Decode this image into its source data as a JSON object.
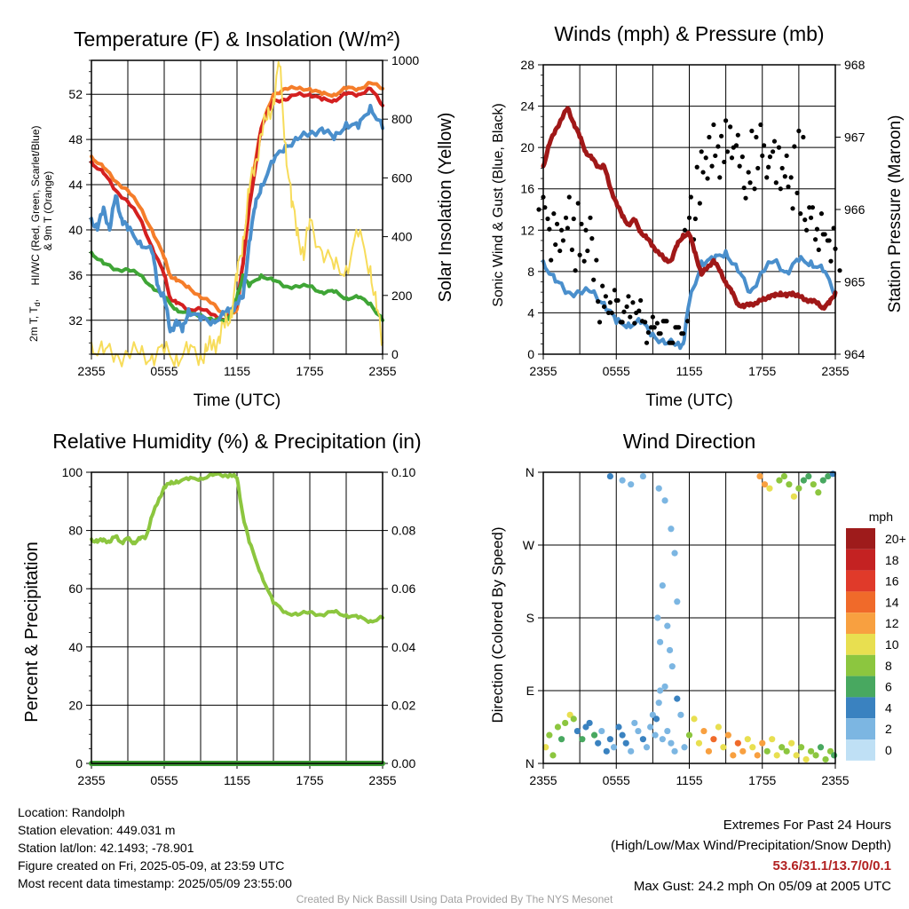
{
  "chart_data": [
    {
      "type": "line",
      "title": "Temperature (F) & Insolation (W/m²)",
      "xlabel": "Time (UTC)",
      "ylabel": "2m T, Td, HI/WC (Red, Green, Scarlet/Blue) & 9m T (Orange)",
      "y2label": "Solar Insolation (Yellow)",
      "xticks": [
        "2355",
        "0555",
        "1155",
        "1755",
        "2355"
      ],
      "xlim": [
        0,
        24
      ],
      "ylim": [
        29,
        55
      ],
      "yticks": [
        32,
        36,
        40,
        44,
        48,
        52
      ],
      "y2lim": [
        0,
        1000
      ],
      "y2ticks": [
        0,
        200,
        400,
        600,
        800,
        1000
      ],
      "colors": {
        "t2m": "#d42020",
        "t9m": "#f57d2a",
        "td": "#3fa536",
        "wc": "#4a8fcc",
        "solar": "#f7dc5a"
      },
      "series": [
        {
          "key": "t9m",
          "x": [
            0,
            1,
            2,
            3,
            4,
            5,
            6,
            6.5,
            7,
            8,
            9,
            10,
            11,
            11.5,
            12,
            12.5,
            13,
            14,
            15,
            16,
            17,
            18,
            19,
            20,
            21,
            22,
            23,
            24
          ],
          "values": [
            46.5,
            45.5,
            44.3,
            43.5,
            42,
            40,
            37.5,
            36,
            35.5,
            35,
            34,
            33.5,
            32.5,
            32.5,
            33,
            37,
            43,
            49,
            52,
            52.5,
            52.5,
            52.5,
            52,
            52,
            52.5,
            52.5,
            53,
            52.5
          ]
        },
        {
          "key": "t2m",
          "x": [
            0,
            1,
            2,
            3,
            4,
            5,
            6,
            6.5,
            7,
            8,
            9,
            10,
            11,
            11.5,
            12,
            12.5,
            13,
            14,
            15,
            16,
            17,
            18,
            19,
            20,
            21,
            22,
            23,
            24
          ],
          "values": [
            46,
            45,
            43.5,
            42.5,
            41,
            38.5,
            36,
            34,
            33.5,
            33,
            33,
            32.5,
            32,
            32.5,
            33.5,
            37,
            42,
            49,
            51.5,
            51.5,
            52,
            52,
            51.5,
            51.5,
            52,
            52,
            52.5,
            51
          ]
        },
        {
          "key": "td",
          "x": [
            0,
            1,
            2,
            3,
            4,
            5,
            6,
            7,
            8,
            9,
            10,
            11,
            11.5,
            12,
            12.5,
            13,
            14,
            15,
            16,
            17,
            18,
            19,
            20,
            21,
            22,
            23,
            24
          ],
          "values": [
            38,
            37,
            36.5,
            36.5,
            36,
            35,
            34,
            33,
            32.5,
            32.5,
            32,
            32,
            32.5,
            34,
            36,
            35,
            36,
            35.5,
            35,
            35,
            35,
            34.5,
            34.5,
            34,
            34,
            33.5,
            32
          ]
        },
        {
          "key": "wc",
          "x": [
            0,
            0.5,
            1,
            1.5,
            2,
            2.5,
            3,
            4,
            5,
            5.5,
            6,
            6.5,
            7,
            7.5,
            8,
            9,
            10,
            11,
            11.5,
            12,
            12.5,
            13,
            13.5,
            14,
            15,
            16,
            17,
            18,
            19,
            20,
            21,
            22,
            23,
            24
          ],
          "values": [
            41,
            40,
            42,
            40,
            43,
            41,
            40,
            39,
            38,
            35,
            34,
            31,
            32,
            31,
            33,
            32,
            32,
            32.5,
            33,
            33.5,
            34,
            39,
            42,
            44,
            46,
            47.5,
            48,
            48.5,
            49,
            48,
            49.5,
            49,
            51,
            49
          ]
        },
        {
          "key": "solar",
          "axis": "y2",
          "x": [
            0,
            1,
            2,
            3,
            4,
            5,
            6,
            7,
            8,
            9,
            9.5,
            10,
            10.5,
            11,
            11.5,
            12,
            12.5,
            13,
            13.5,
            14,
            14.5,
            15,
            15.5,
            16,
            16.5,
            17,
            17.5,
            18,
            19,
            20,
            21,
            22,
            23,
            23.5,
            24
          ],
          "values": [
            40,
            0,
            0,
            0,
            0,
            0,
            0,
            0,
            0,
            0,
            10,
            30,
            60,
            90,
            150,
            250,
            400,
            550,
            650,
            750,
            800,
            870,
            980,
            720,
            500,
            430,
            320,
            460,
            350,
            290,
            300,
            400,
            300,
            150,
            40
          ]
        }
      ]
    },
    {
      "type": "line",
      "title": "Winds (mph) & Pressure (mb)",
      "xlabel": "Time (UTC)",
      "ylabel": "Sonic Wind & Gust (Blue, Black)",
      "y2label": "Station Pressure (Maroon)",
      "xticks": [
        "2355",
        "0555",
        "1155",
        "1755",
        "2355"
      ],
      "xlim": [
        0,
        24
      ],
      "ylim": [
        0,
        28
      ],
      "yticks": [
        0,
        4,
        8,
        12,
        16,
        20,
        24,
        28
      ],
      "y2lim": [
        964,
        968
      ],
      "y2ticks": [
        964,
        965,
        966,
        967,
        968
      ],
      "colors": {
        "wind": "#4a8fcc",
        "gust": "#000000",
        "pressure": "#a01818"
      },
      "series": [
        {
          "key": "wind",
          "x": [
            0,
            1,
            2,
            3,
            4,
            5,
            6,
            7,
            8,
            9,
            10,
            11,
            11.5,
            12,
            13,
            14,
            15,
            16,
            17,
            18,
            19,
            20,
            21,
            22,
            23,
            24
          ],
          "values": [
            9,
            7,
            6,
            6,
            6,
            5,
            3,
            3,
            3,
            2,
            1,
            1,
            1,
            5,
            9,
            9,
            10,
            8,
            6,
            8,
            9,
            8,
            9,
            9,
            8,
            6
          ]
        },
        {
          "key": "gust",
          "x": [
            0,
            0.5,
            1,
            1.5,
            2,
            2.5,
            3,
            3.5,
            4,
            4.5,
            5,
            5.5,
            6,
            6.5,
            7,
            7.5,
            8,
            8.5,
            9,
            9.5,
            10,
            10.5,
            11,
            11.5,
            12,
            12.5,
            13,
            13.5,
            14,
            14.5,
            15,
            15.5,
            16,
            16.5,
            17,
            17.5,
            18,
            18.5,
            19,
            19.5,
            20,
            20.5,
            21,
            21.5,
            22,
            22.5,
            23,
            23.5,
            24
          ],
          "values": [
            14,
            13,
            10,
            12,
            11,
            14,
            9,
            12,
            10,
            6,
            4,
            5,
            4,
            4,
            5,
            3,
            4,
            2,
            3,
            2,
            2,
            2,
            2,
            2,
            12,
            14,
            19,
            17,
            21,
            18,
            22,
            19,
            20,
            17,
            16,
            21,
            18,
            19,
            20,
            16,
            18,
            15,
            21,
            13,
            12,
            13,
            11,
            11,
            9
          ]
        },
        {
          "key": "pressure",
          "axis": "y2",
          "x": [
            0,
            0.5,
            1,
            1.5,
            2,
            2.5,
            3,
            3.5,
            4,
            4.5,
            5,
            5.5,
            6,
            6.5,
            7,
            7.5,
            8,
            8.5,
            9,
            9.5,
            10,
            10.5,
            11,
            11.5,
            12,
            12.5,
            13,
            13.5,
            14,
            14.5,
            15,
            15.5,
            16,
            16.5,
            17,
            17.5,
            18,
            18.5,
            19,
            19.5,
            20,
            20.5,
            21,
            21.5,
            22,
            22.5,
            23,
            23.5,
            24
          ],
          "values": [
            966.6,
            966.9,
            967.1,
            967.25,
            967.4,
            967.2,
            967.0,
            966.8,
            966.7,
            966.6,
            966.6,
            966.3,
            966.1,
            965.9,
            965.8,
            965.85,
            965.7,
            965.6,
            965.5,
            965.4,
            965.3,
            965.3,
            965.5,
            965.65,
            965.65,
            965.4,
            965.1,
            965.2,
            965.3,
            965.15,
            965.0,
            964.85,
            964.7,
            964.65,
            964.7,
            964.7,
            964.75,
            964.8,
            964.8,
            964.85,
            964.8,
            964.85,
            964.8,
            964.75,
            964.75,
            964.7,
            964.65,
            964.7,
            964.85
          ]
        }
      ]
    },
    {
      "type": "line",
      "title": "Relative Humidity (%) & Precipitation (in)",
      "ylabel": "Percent & Precipitation",
      "xticks": [
        "2355",
        "0555",
        "1155",
        "1755",
        "2355"
      ],
      "xlim": [
        0,
        24
      ],
      "ylim": [
        0,
        100
      ],
      "yticks": [
        0,
        20,
        40,
        60,
        80,
        100
      ],
      "y2lim": [
        0,
        0.1
      ],
      "y2ticks": [
        "0.00",
        "0.02",
        "0.04",
        "0.06",
        "0.08",
        "0.10"
      ],
      "colors": {
        "rh": "#8cc63f",
        "precip": "#3d9a35"
      },
      "series": [
        {
          "key": "rh",
          "x": [
            0,
            0.5,
            1,
            1.5,
            2,
            2.5,
            3,
            3.5,
            4,
            4.5,
            5,
            5.5,
            6,
            6.5,
            7,
            8,
            9,
            10,
            11,
            11.5,
            12,
            12.5,
            13,
            14,
            15,
            16,
            17,
            18,
            19,
            20,
            21,
            22,
            23,
            24
          ],
          "values": [
            77,
            76,
            77,
            76,
            78,
            76,
            77,
            76,
            77,
            78,
            85,
            90,
            95,
            96,
            97,
            97.5,
            98,
            99,
            99,
            99,
            98,
            85,
            76,
            65,
            55,
            52,
            51,
            52,
            51,
            52,
            51,
            50,
            49,
            50
          ]
        },
        {
          "key": "precip",
          "axis": "y2",
          "x": [
            0,
            24
          ],
          "values": [
            0,
            0
          ]
        }
      ]
    },
    {
      "type": "scatter",
      "title": "Wind Direction",
      "ylabel": "Direction (Colored By Speed)",
      "xticks": [
        "2355",
        "0555",
        "1155",
        "1755",
        "2355"
      ],
      "xlim": [
        0,
        24
      ],
      "ylim": [
        0,
        360
      ],
      "yticks": [
        "N",
        "E",
        "S",
        "W",
        "N"
      ],
      "colorbar": {
        "title": "mph",
        "labels": [
          "20+",
          "18",
          "16",
          "14",
          "12",
          "10",
          "8",
          "6",
          "4",
          "2",
          "0"
        ],
        "colors": [
          "#9e1b1b",
          "#c42222",
          "#e03a2a",
          "#f06a2a",
          "#f8a040",
          "#e8df50",
          "#8cc63f",
          "#48a860",
          "#3a82c0",
          "#7cb6e2",
          "#bfe0f5"
        ]
      },
      "points_x": [
        0.2,
        0.5,
        0.8,
        1.2,
        1.5,
        1.8,
        2.2,
        2.5,
        2.8,
        3.2,
        3.5,
        3.8,
        4.2,
        4.5,
        4.8,
        5.2,
        5.5,
        5.8,
        6.2,
        6.5,
        6.8,
        7.2,
        7.5,
        7.8,
        8.2,
        8.5,
        8.8,
        9.0,
        9.2,
        9.3,
        9.5,
        9.6,
        9.8,
        10.0,
        10.2,
        10.5,
        10.8,
        11.0,
        11.3,
        11.6,
        12.0,
        12.4,
        12.8,
        13.2,
        13.6,
        14.0,
        14.4,
        14.8,
        15.2,
        15.6,
        16.0,
        16.4,
        16.8,
        17.2,
        17.6,
        18.0,
        18.4,
        18.8,
        19.2,
        19.6,
        20.0,
        20.4,
        20.8,
        21.2,
        21.6,
        22.0,
        22.4,
        22.8,
        23.2,
        23.6,
        23.9,
        17.8,
        18.2,
        18.6,
        19.4,
        19.8,
        20.2,
        20.6,
        21.0,
        21.4,
        21.8,
        22.2,
        22.6,
        23.0,
        23.4,
        23.8,
        5.5,
        6.5,
        7.2,
        8.2,
        9.5,
        10.0,
        10.5,
        10.8,
        11.0,
        9.4,
        9.6,
        9.8,
        10.2,
        10.4,
        10.6
      ],
      "points_y": [
        20,
        35,
        10,
        45,
        30,
        50,
        60,
        55,
        40,
        30,
        45,
        50,
        35,
        25,
        40,
        15,
        30,
        20,
        45,
        35,
        25,
        15,
        50,
        40,
        30,
        20,
        45,
        60,
        35,
        55,
        75,
        90,
        30,
        95,
        40,
        25,
        15,
        80,
        60,
        20,
        35,
        55,
        25,
        40,
        15,
        30,
        45,
        20,
        35,
        10,
        25,
        15,
        30,
        20,
        10,
        25,
        15,
        30,
        10,
        20,
        15,
        25,
        10,
        20,
        5,
        15,
        10,
        20,
        5,
        15,
        10,
        355,
        345,
        340,
        350,
        355,
        345,
        330,
        340,
        350,
        355,
        345,
        335,
        350,
        355,
        358,
        355,
        350,
        345,
        355,
        340,
        325,
        290,
        260,
        200,
        180,
        150,
        220,
        170,
        140,
        120,
        100
      ],
      "points_speed": [
        9,
        8,
        7,
        8,
        6,
        8,
        9,
        7,
        4,
        6,
        3,
        4,
        5,
        3,
        2,
        4,
        3,
        2,
        4,
        3,
        3,
        2,
        1,
        2,
        3,
        2,
        1,
        1,
        2,
        3,
        1,
        2,
        1,
        2,
        1,
        1,
        2,
        3,
        1,
        2,
        8,
        9,
        10,
        12,
        11,
        13,
        10,
        9,
        12,
        11,
        13,
        12,
        10,
        9,
        11,
        12,
        8,
        10,
        9,
        7,
        8,
        10,
        9,
        8,
        9,
        7,
        8,
        6,
        7,
        8,
        5,
        12,
        11,
        9,
        8,
        7,
        8,
        9,
        7,
        6,
        5,
        8,
        7,
        6,
        5,
        4,
        3,
        2,
        1,
        2,
        1,
        2,
        1,
        1,
        2,
        1,
        1,
        2,
        1,
        1,
        2,
        1
      ]
    }
  ],
  "info": {
    "location": "Location: Randolph",
    "elevation": "Station elevation: 449.031 m",
    "latlon": "Station lat/lon: 42.1493; -78.901",
    "created": "Figure created on Fri, 2025-05-09, at 23:59 UTC",
    "recent": "Most recent data timestamp: 2025/05/09 23:55:00"
  },
  "extremes": {
    "heading": "Extremes For Past 24 Hours",
    "subheading": "(High/Low/Max Wind/Precipitation/Snow Depth)",
    "values": "53.6/31.1/13.7/0/0.1",
    "max_gust": "Max Gust: 24.2 mph On 05/09 at 2005 UTC"
  },
  "credit": "Created By Nick Bassill Using Data Provided By The NYS Mesonet"
}
